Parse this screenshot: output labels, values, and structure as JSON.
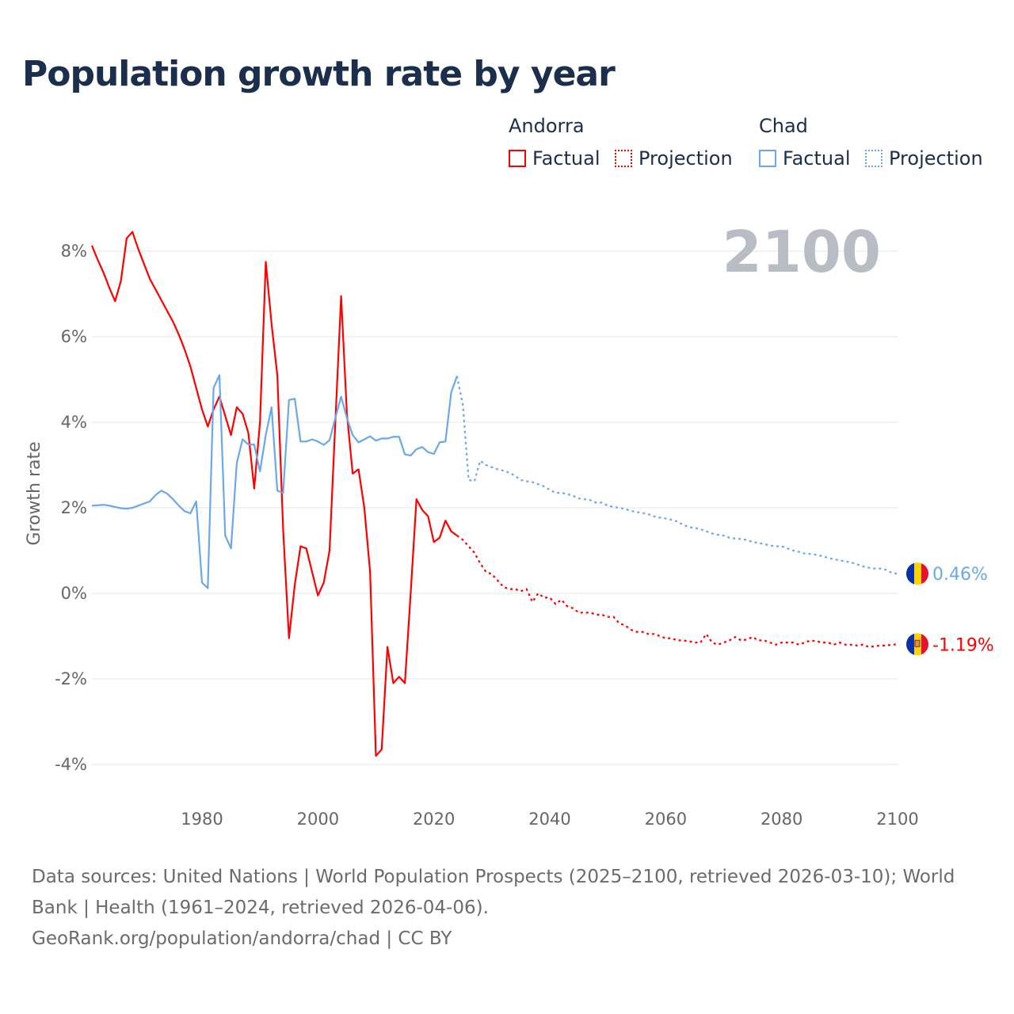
{
  "title": "Population growth rate by year",
  "legend": {
    "groups": [
      {
        "name": "Andorra",
        "factual": "Factual",
        "projection": "Projection",
        "color": "#ff0000"
      },
      {
        "name": "Chad",
        "factual": "Factual",
        "projection": "Projection",
        "color": "#6aa8ea"
      }
    ]
  },
  "footer": {
    "line1": "Data sources: United Nations | World Population Prospects (2025–2100, retrieved 2026-03-10); World Bank | Health (1961–2024, retrieved 2026-04-06).",
    "line2": "GeoRank.org/population/andorra/chad | CC BY"
  },
  "chart_data": {
    "type": "line",
    "title": "Population growth rate by year",
    "ylabel": "Growth rate",
    "xlim": [
      1961,
      2100
    ],
    "ylim": [
      -5,
      9
    ],
    "xticks": [
      1980,
      2000,
      2020,
      2040,
      2060,
      2080,
      2100
    ],
    "xtick_labels": [
      "1980",
      "2000",
      "2020",
      "2040",
      "2060",
      "2080",
      "2100"
    ],
    "yticks": [
      8,
      6,
      4,
      2,
      0,
      -2,
      -4
    ],
    "ytick_labels": [
      "8%",
      "6%",
      "4%",
      "2%",
      "0%",
      "-2%",
      "-4%"
    ],
    "year_label": "2100",
    "grid": true,
    "series": [
      {
        "name": "Andorra",
        "color": "#ff0000",
        "end_label": "-1.19%",
        "flag": "andorra-flag",
        "factual_start": 1961,
        "factual": [
          8.13,
          7.8,
          7.5,
          7.15,
          6.83,
          7.3,
          8.3,
          8.45,
          8.05,
          7.7,
          7.35,
          7.1,
          6.85,
          6.6,
          6.35,
          6.05,
          5.7,
          5.3,
          4.8,
          4.3,
          3.9,
          4.3,
          4.6,
          4.15,
          3.7,
          4.35,
          4.2,
          3.75,
          2.45,
          4.0,
          7.75,
          6.3,
          5.1,
          1.5,
          -1.05,
          0.2,
          1.1,
          1.05,
          0.5,
          -0.05,
          0.25,
          1.0,
          4.0,
          6.95,
          4.2,
          2.8,
          2.9,
          2.0,
          0.5,
          -3.8,
          -3.65,
          -1.25,
          -2.1,
          -1.95,
          -2.1,
          0.0,
          2.2,
          1.95,
          1.8,
          1.2,
          1.3,
          1.7,
          1.45,
          1.35
        ],
        "projection_start": 2025,
        "projection": [
          1.25,
          1.1,
          0.95,
          0.7,
          0.5,
          0.45,
          0.3,
          0.15,
          0.1,
          0.1,
          0.05,
          0.1,
          -0.2,
          0,
          -0.1,
          -0.1,
          -0.25,
          -0.15,
          -0.3,
          -0.35,
          -0.45,
          -0.45,
          -0.45,
          -0.5,
          -0.5,
          -0.55,
          -0.55,
          -0.7,
          -0.75,
          -0.85,
          -0.9,
          -0.9,
          -0.95,
          -0.95,
          -1.0,
          -1.05,
          -1.05,
          -1.1,
          -1.1,
          -1.12,
          -1.15,
          -1.15,
          -0.95,
          -1.15,
          -1.2,
          -1.15,
          -1.1,
          -1.02,
          -1.1,
          -1.08,
          -1.02,
          -1.1,
          -1.1,
          -1.15,
          -1.2,
          -1.15,
          -1.15,
          -1.15,
          -1.2,
          -1.15,
          -1.1,
          -1.12,
          -1.15,
          -1.15,
          -1.2,
          -1.15,
          -1.2,
          -1.2,
          -1.22,
          -1.2,
          -1.25,
          -1.24,
          -1.22,
          -1.22,
          -1.2,
          -1.19
        ]
      },
      {
        "name": "Chad",
        "color": "#6aa8ea",
        "end_label": "0.46%",
        "flag": "chad-flag",
        "factual_start": 1961,
        "factual": [
          2.05,
          2.06,
          2.07,
          2.05,
          2.02,
          1.99,
          1.98,
          2.0,
          2.05,
          2.1,
          2.15,
          2.3,
          2.4,
          2.33,
          2.2,
          2.05,
          1.92,
          1.87,
          2.15,
          0.25,
          0.12,
          4.8,
          5.1,
          1.35,
          1.05,
          3.05,
          3.6,
          3.48,
          3.48,
          2.85,
          3.7,
          4.35,
          2.4,
          2.35,
          4.52,
          4.55,
          3.55,
          3.55,
          3.6,
          3.55,
          3.47,
          3.58,
          4.1,
          4.6,
          4.1,
          3.7,
          3.53,
          3.6,
          3.67,
          3.57,
          3.62,
          3.62,
          3.66,
          3.66,
          3.25,
          3.22,
          3.37,
          3.42,
          3.3,
          3.26,
          3.53,
          3.55,
          4.7,
          5.08
        ],
        "projection_start": 2025,
        "projection": [
          4.4,
          2.65,
          2.62,
          3.1,
          3.0,
          2.95,
          2.9,
          2.87,
          2.82,
          2.75,
          2.65,
          2.62,
          2.6,
          2.55,
          2.5,
          2.42,
          2.35,
          2.35,
          2.32,
          2.28,
          2.22,
          2.2,
          2.18,
          2.12,
          2.12,
          2.05,
          2.02,
          2.0,
          1.97,
          1.93,
          1.9,
          1.88,
          1.85,
          1.8,
          1.77,
          1.75,
          1.72,
          1.68,
          1.6,
          1.55,
          1.53,
          1.5,
          1.45,
          1.4,
          1.37,
          1.35,
          1.3,
          1.28,
          1.27,
          1.25,
          1.2,
          1.18,
          1.15,
          1.12,
          1.1,
          1.1,
          1.05,
          1.0,
          0.97,
          0.93,
          0.92,
          0.9,
          0.87,
          0.83,
          0.8,
          0.77,
          0.75,
          0.72,
          0.68,
          0.63,
          0.6,
          0.58,
          0.58,
          0.55,
          0.48,
          0.46
        ]
      }
    ]
  }
}
